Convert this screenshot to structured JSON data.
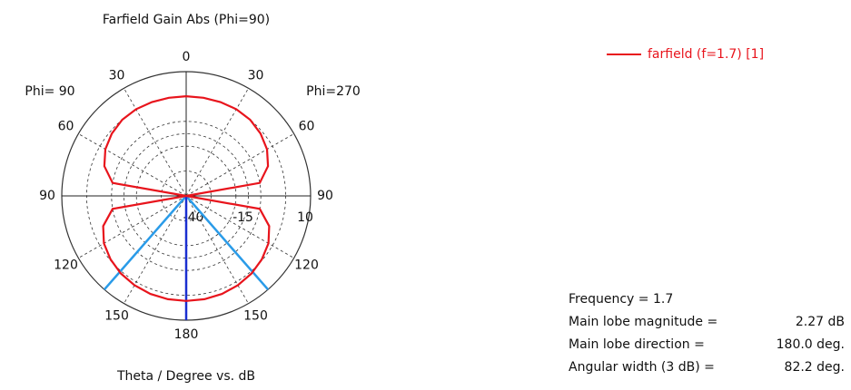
{
  "chart_data": {
    "type": "polar",
    "title": "Farfield Gain Abs (Phi=90)",
    "left_label": "Phi= 90",
    "right_label": "Phi=270",
    "axis_label": "Theta / Degree vs. dB",
    "x": [
      0,
      10,
      20,
      30,
      40,
      50,
      60,
      70,
      80,
      90,
      100,
      110,
      120,
      130,
      140,
      150,
      160,
      170,
      180,
      190,
      200,
      210,
      220,
      230,
      240,
      250,
      260,
      270,
      280,
      290,
      300,
      310,
      320,
      330,
      340,
      350,
      360
    ],
    "series": [
      {
        "name": "farfield (f=1.7) [1]",
        "color": "#e8141c",
        "values": [
          0.1,
          0.1,
          0.2,
          0.3,
          0.0,
          -1.0,
          -2.5,
          -5,
          -10,
          -40,
          -10,
          -4.5,
          -1.8,
          -0.3,
          0.8,
          1.5,
          2.0,
          2.2,
          2.27,
          2.2,
          2.0,
          1.5,
          0.8,
          -0.3,
          -1.8,
          -4.5,
          -10,
          -40,
          -10,
          -5,
          -2.5,
          -1.0,
          0.0,
          0.3,
          0.2,
          0.1,
          0.1
        ]
      }
    ],
    "rlim": [
      -40,
      10
    ],
    "rticks": [
      -40,
      -15,
      10
    ],
    "rgrid": [
      -30,
      -20,
      -10,
      0
    ],
    "thetaticks": [
      0,
      30,
      60,
      90,
      120,
      150,
      180
    ],
    "main_lobe_direction": 180,
    "angular_width": 82.2,
    "grid": true,
    "info": [
      {
        "label": "Frequency = 1.7"
      },
      {
        "label": "Main lobe magnitude =",
        "value": "2.27 dB"
      },
      {
        "label": "Main lobe direction =",
        "value": "180.0 deg."
      },
      {
        "label": "Angular width (3 dB) =",
        "value": "82.2 deg."
      }
    ]
  }
}
